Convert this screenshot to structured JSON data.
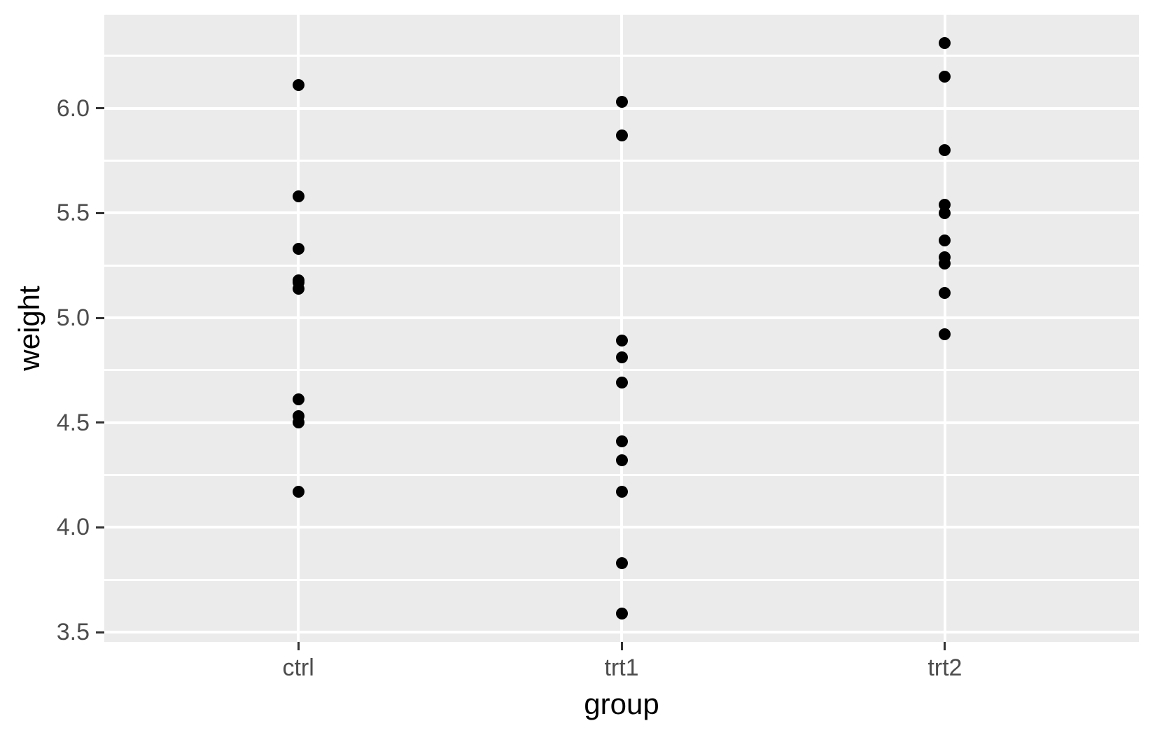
{
  "figure": {
    "background_color": "#FFFFFF",
    "panel_background_color": "#EBEBEB",
    "grid_color": "#FFFFFF",
    "point_color": "#000000",
    "tick_mark_color": "#333333",
    "tick_label_color": "#4D4D4D",
    "axis_title_color": "#000000"
  },
  "chart_data": {
    "type": "scatter",
    "title": "",
    "xlabel": "group",
    "ylabel": "weight",
    "categories": [
      "ctrl",
      "trt1",
      "trt2"
    ],
    "series": [
      {
        "name": "ctrl",
        "values": [
          4.17,
          5.58,
          5.18,
          6.11,
          4.5,
          4.61,
          5.17,
          4.53,
          5.33,
          5.14
        ]
      },
      {
        "name": "trt1",
        "values": [
          4.81,
          4.17,
          4.41,
          3.59,
          5.87,
          3.83,
          6.03,
          4.89,
          4.32,
          4.69
        ]
      },
      {
        "name": "trt2",
        "values": [
          6.31,
          5.12,
          5.54,
          5.5,
          5.37,
          5.29,
          4.92,
          6.15,
          5.8,
          5.26
        ]
      }
    ],
    "y_major_breaks": [
      3.5,
      4.0,
      4.5,
      5.0,
      5.5,
      6.0
    ],
    "y_minor_breaks": [
      3.75,
      4.25,
      4.75,
      5.25,
      5.75,
      6.25
    ],
    "y_tick_labels": [
      "3.5",
      "4.0",
      "4.5",
      "5.0",
      "5.5",
      "6.0"
    ],
    "ylim": [
      3.454,
      6.446
    ],
    "x_positions": [
      1,
      2,
      3
    ],
    "xlim": [
      0.4,
      3.6
    ],
    "grid": true,
    "legend_position": "none",
    "panel_theme": "ggplot2-grey"
  }
}
